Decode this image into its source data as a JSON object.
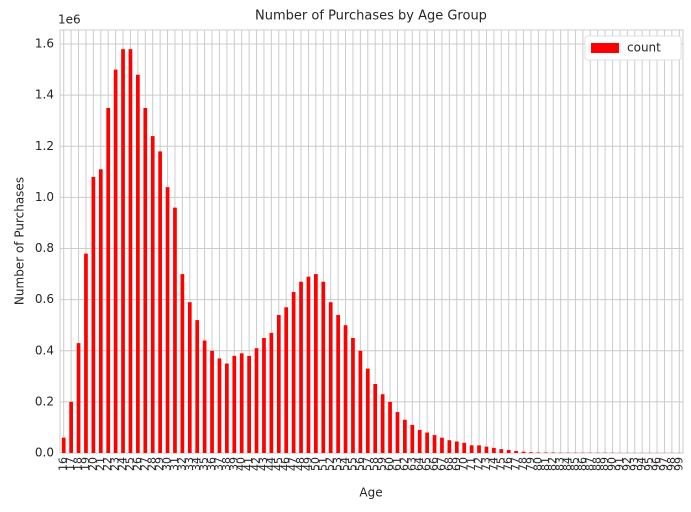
{
  "chart_data": {
    "type": "bar",
    "title": "Number of Purchases by Age Group",
    "x_label": "Age",
    "y_label": "Number of Purchases",
    "y_offset_label": "1e6",
    "categories": [
      "16",
      "17",
      "18",
      "19",
      "20",
      "21",
      "22",
      "23",
      "24",
      "25",
      "26",
      "27",
      "28",
      "29",
      "30",
      "31",
      "32",
      "33",
      "34",
      "35",
      "36",
      "37",
      "38",
      "39",
      "40",
      "41",
      "42",
      "43",
      "44",
      "45",
      "46",
      "47",
      "48",
      "49",
      "50",
      "51",
      "52",
      "53",
      "54",
      "55",
      "56",
      "57",
      "58",
      "59",
      "60",
      "61",
      "62",
      "63",
      "64",
      "65",
      "66",
      "67",
      "68",
      "69",
      "70",
      "71",
      "72",
      "73",
      "74",
      "75",
      "76",
      "77",
      "78",
      "79",
      "80",
      "81",
      "82",
      "83",
      "84",
      "85",
      "86",
      "87",
      "88",
      "89",
      "90",
      "91",
      "92",
      "93",
      "94",
      "95",
      "96",
      "97",
      "98",
      "99"
    ],
    "series": [
      {
        "name": "count",
        "color": "#ff0000",
        "values": [
          0.06,
          0.2,
          0.43,
          0.78,
          1.08,
          1.11,
          1.35,
          1.5,
          1.58,
          1.58,
          1.48,
          1.35,
          1.24,
          1.18,
          1.04,
          0.96,
          0.7,
          0.59,
          0.52,
          0.44,
          0.4,
          0.37,
          0.35,
          0.38,
          0.39,
          0.38,
          0.41,
          0.45,
          0.47,
          0.54,
          0.57,
          0.63,
          0.67,
          0.69,
          0.7,
          0.67,
          0.59,
          0.54,
          0.5,
          0.45,
          0.4,
          0.33,
          0.27,
          0.23,
          0.2,
          0.16,
          0.13,
          0.11,
          0.09,
          0.08,
          0.07,
          0.06,
          0.05,
          0.045,
          0.04,
          0.03,
          0.03,
          0.025,
          0.02,
          0.015,
          0.012,
          0.008,
          0.005,
          0.003,
          0.002,
          0.002,
          0.002,
          0.001,
          0.001,
          0.001,
          0.001,
          0.001,
          0.001,
          0.001,
          0.001,
          0.0005,
          0.0005,
          0.0005,
          0.0005,
          0.0005,
          0.0005,
          0.0005,
          0.0005,
          0.0005
        ]
      }
    ],
    "ylim": [
      0,
      1.655
    ],
    "yticks": [
      {
        "value": 0,
        "label": "0.0"
      },
      0.2,
      0.4,
      0.6,
      0.8,
      {
        "value": 1,
        "label": "1.0"
      },
      1.2,
      1.4,
      1.6
    ],
    "grid": true,
    "legend": "upper right"
  }
}
